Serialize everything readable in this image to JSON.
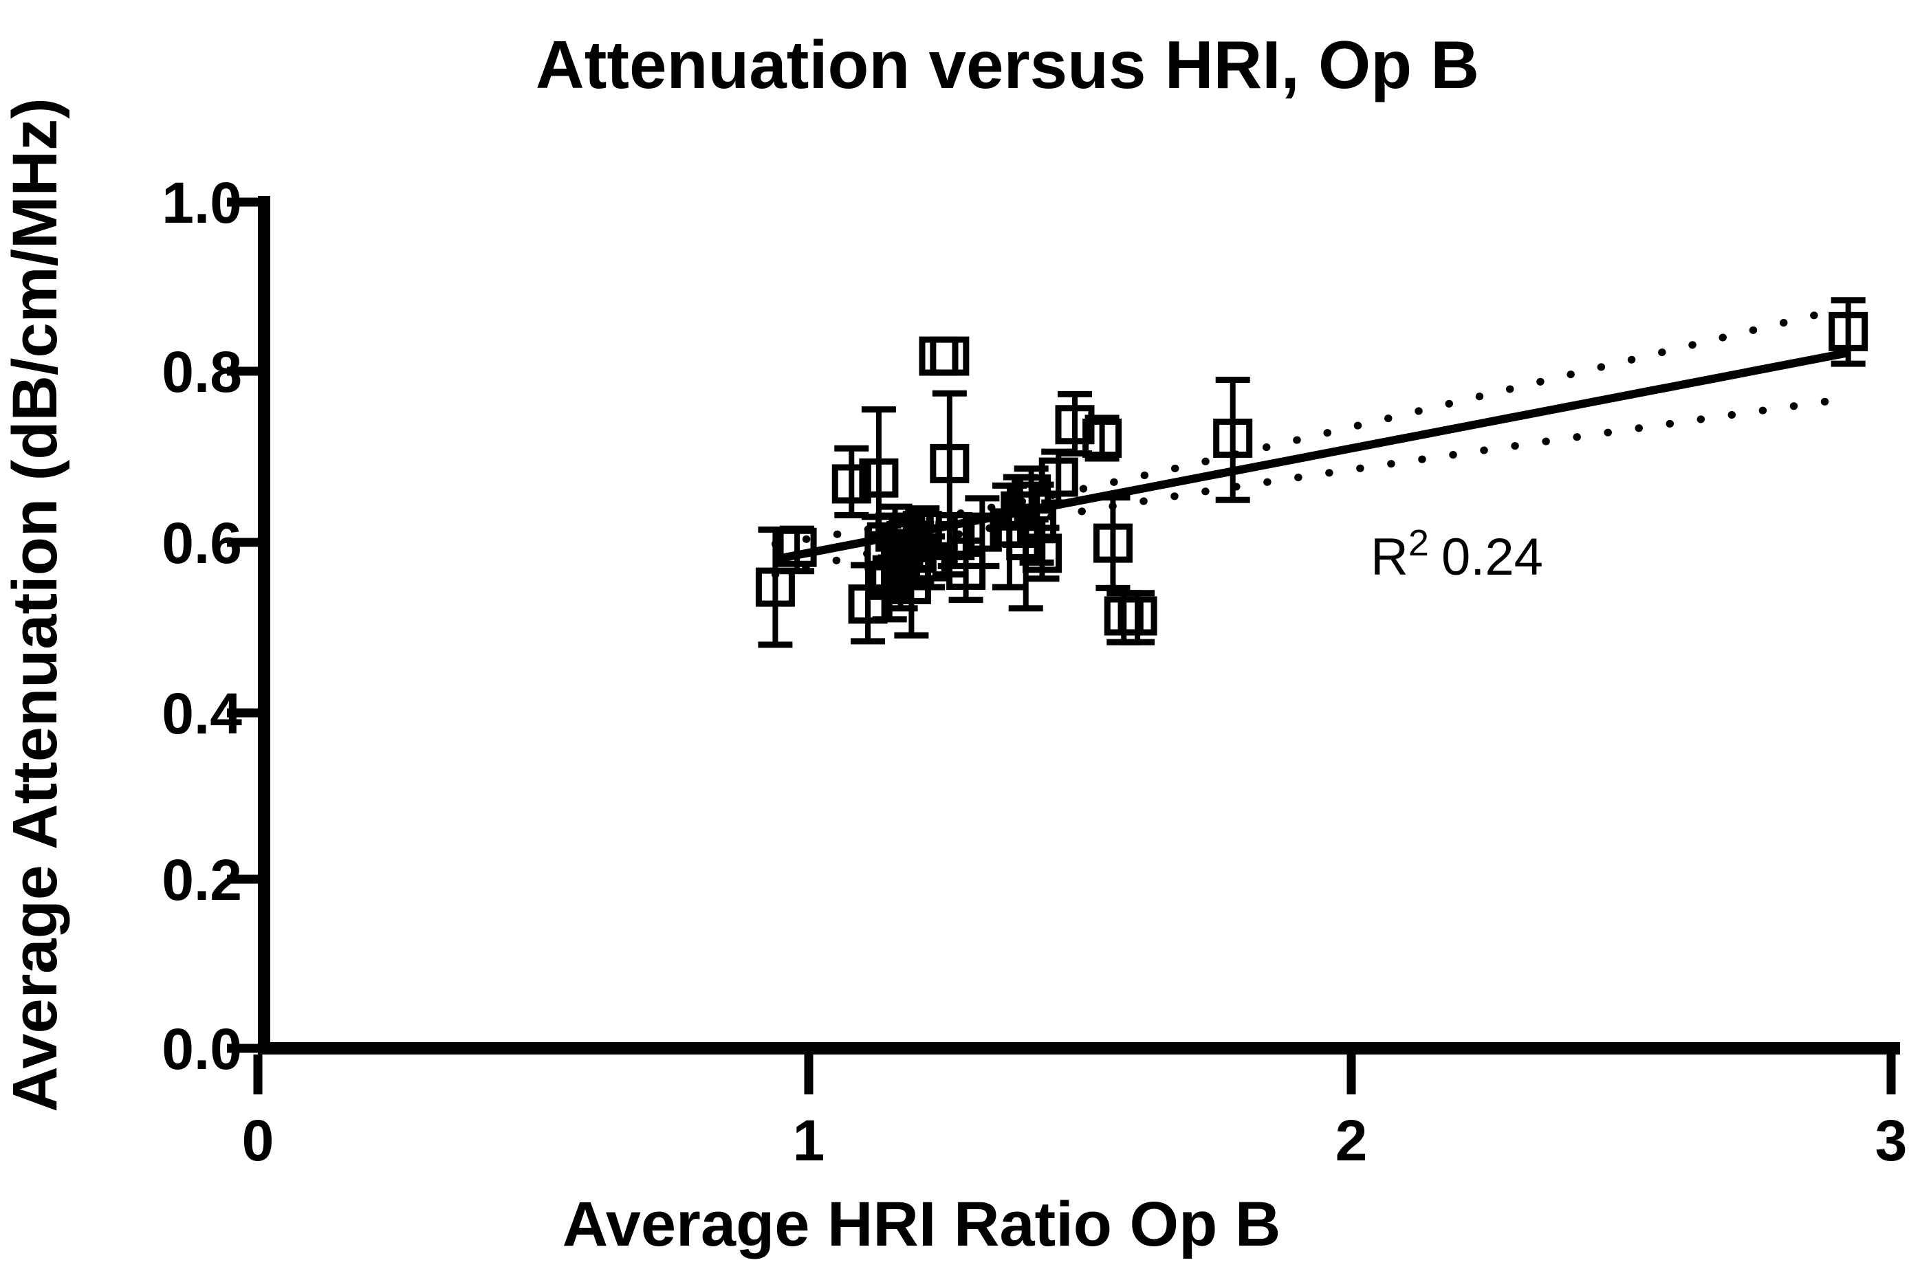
{
  "page": {
    "background": "#ffffff",
    "foreground": "#000000"
  },
  "title": "Attenuation versus HRI, Op B",
  "y_axis": {
    "label": "Average Attenuation (dB/cm/MHz)",
    "ticks": [
      {
        "label": "1.0",
        "value": 1.0
      },
      {
        "label": "0.8",
        "value": 0.8
      },
      {
        "label": "0.6",
        "value": 0.6
      },
      {
        "label": "0.4",
        "value": 0.4
      },
      {
        "label": "0.2",
        "value": 0.2
      },
      {
        "label": "0.0",
        "value": 0.0
      }
    ]
  },
  "x_axis": {
    "label": "Average HRI Ratio Op B",
    "ticks": [
      {
        "label": "0",
        "value": 0
      },
      {
        "label": "1",
        "value": 1
      },
      {
        "label": "2",
        "value": 2
      },
      {
        "label": "3",
        "value": 3
      }
    ]
  },
  "annotation": {
    "r_base": "R",
    "r_sup": "2",
    "r_value": "0.24"
  },
  "chart_data": {
    "type": "scatter",
    "title": "Attenuation versus HRI, Op B",
    "xlabel": "Average HRI Ratio Op B",
    "ylabel": "Average Attenuation (dB/cm/MHz)",
    "xlim": [
      0,
      3
    ],
    "ylim": [
      0.0,
      1.0
    ],
    "grid": false,
    "marker": "open-square",
    "color": "#000000",
    "r_squared": 0.24,
    "points": [
      {
        "x": 0.95,
        "y": 0.545,
        "err_plus": 0.068,
        "err_minus": 0.068
      },
      {
        "x": 0.99,
        "y": 0.592,
        "err_plus": 0.022,
        "err_minus": 0.028
      },
      {
        "x": 1.09,
        "y": 0.667,
        "err_plus": 0.042,
        "err_minus": 0.037
      },
      {
        "x": 1.14,
        "y": 0.674,
        "err_plus": 0.081,
        "err_minus": 0.046
      },
      {
        "x": 1.12,
        "y": 0.525,
        "err_plus": 0.046,
        "err_minus": 0.044
      },
      {
        "x": 1.15,
        "y": 0.588,
        "err_plus": 0.03,
        "err_minus": 0.05
      },
      {
        "x": 1.16,
        "y": 0.553,
        "err_plus": 0.026,
        "err_minus": 0.046
      },
      {
        "x": 1.17,
        "y": 0.61,
        "err_plus": 0.03,
        "err_minus": 0.03
      },
      {
        "x": 1.18,
        "y": 0.57,
        "err_plus": 0.04,
        "err_minus": 0.05
      },
      {
        "x": 1.19,
        "y": 0.6,
        "err_plus": 0.026,
        "err_minus": 0.026
      },
      {
        "x": 1.2,
        "y": 0.548,
        "err_plus": 0.03,
        "err_minus": 0.06
      },
      {
        "x": 1.21,
        "y": 0.585,
        "err_plus": 0.035,
        "err_minus": 0.035
      },
      {
        "x": 1.22,
        "y": 0.612,
        "err_plus": 0.026,
        "err_minus": 0.026
      },
      {
        "x": 1.23,
        "y": 0.575,
        "err_plus": 0.03,
        "err_minus": 0.03
      },
      {
        "x": 1.25,
        "y": 0.818,
        "err_plus": 0,
        "err_minus": 0
      },
      {
        "x": 1.27,
        "y": 0.818,
        "err_plus": 0,
        "err_minus": 0
      },
      {
        "x": 1.27,
        "y": 0.691,
        "err_plus": 0.083,
        "err_minus": 0.131
      },
      {
        "x": 1.28,
        "y": 0.6,
        "err_plus": 0.03,
        "err_minus": 0.03
      },
      {
        "x": 1.3,
        "y": 0.565,
        "err_plus": 0.035,
        "err_minus": 0.035
      },
      {
        "x": 1.33,
        "y": 0.61,
        "err_plus": 0.04,
        "err_minus": 0.04
      },
      {
        "x": 1.38,
        "y": 0.615,
        "err_plus": 0.05,
        "err_minus": 0.07
      },
      {
        "x": 1.4,
        "y": 0.635,
        "err_plus": 0.04,
        "err_minus": 0.04
      },
      {
        "x": 1.41,
        "y": 0.6,
        "err_plus": 0.04,
        "err_minus": 0.08
      },
      {
        "x": 1.42,
        "y": 0.655,
        "err_plus": 0.03,
        "err_minus": 0.03
      },
      {
        "x": 1.43,
        "y": 0.62,
        "err_plus": 0.046,
        "err_minus": 0.046
      },
      {
        "x": 1.44,
        "y": 0.585,
        "err_plus": 0.03,
        "err_minus": 0.03
      },
      {
        "x": 1.47,
        "y": 0.675,
        "err_plus": 0.03,
        "err_minus": 0.03
      },
      {
        "x": 1.5,
        "y": 0.737,
        "err_plus": 0.036,
        "err_minus": 0.034
      },
      {
        "x": 1.55,
        "y": 0.721,
        "err_plus": 0.024,
        "err_minus": 0.024
      },
      {
        "x": 1.57,
        "y": 0.597,
        "err_plus": 0.054,
        "err_minus": 0.053
      },
      {
        "x": 1.59,
        "y": 0.511,
        "err_plus": 0.027,
        "err_minus": 0.031
      },
      {
        "x": 1.615,
        "y": 0.511,
        "err_plus": 0.027,
        "err_minus": 0.031
      },
      {
        "x": 1.79,
        "y": 0.721,
        "err_plus": 0.069,
        "err_minus": 0.073
      },
      {
        "x": 2.92,
        "y": 0.847,
        "err_plus": 0.037,
        "err_minus": 0.038
      }
    ],
    "fit_line": {
      "style": "solid",
      "x_start": 0.95,
      "y_start": 0.578,
      "x_end": 2.92,
      "y_end": 0.822
    },
    "confidence_band": {
      "style": "dotted",
      "x_start": 0.95,
      "x_end": 2.92,
      "center_x": 1.35,
      "min_half_width": 0.012,
      "spread": 0.0335
    },
    "legend": null
  }
}
